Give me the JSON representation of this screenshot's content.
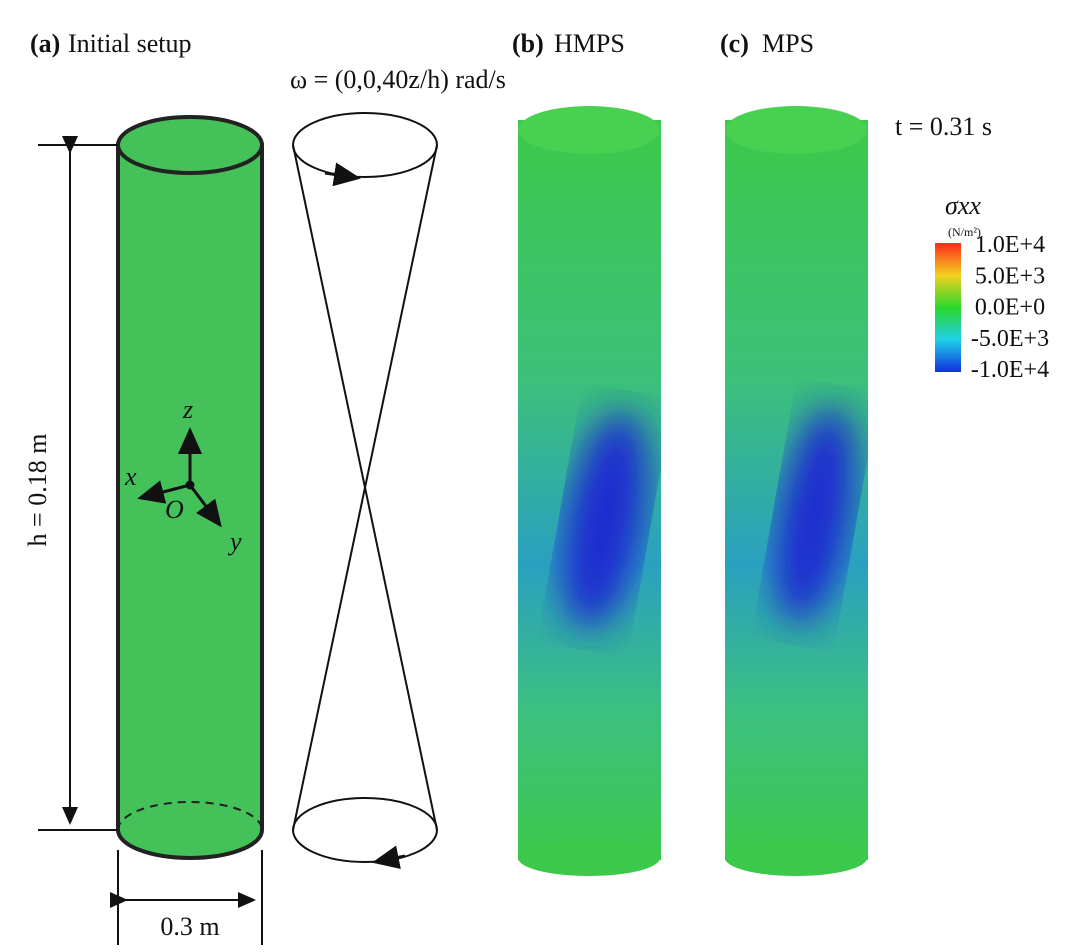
{
  "panels": [
    {
      "letter": "(a)",
      "title": "Initial setup"
    },
    {
      "letter": "(b)",
      "title": "HMPS"
    },
    {
      "letter": "(c)",
      "title": "MPS"
    }
  ],
  "angular_velocity": "ω = (0,0,40z/h) rad/s",
  "height_label": "h = 0.18 m",
  "width_label": "0.3 m",
  "axes": {
    "z": "z",
    "x": "x",
    "y": "y",
    "origin": "O"
  },
  "time_label": "t = 0.31 s",
  "colorbar": {
    "title": "σxx",
    "unit": "(N/m²)",
    "labels": [
      "1.0E+4",
      "5.0E+3",
      "0.0E+0",
      "-5.0E+3",
      "-1.0E+4"
    ]
  }
}
